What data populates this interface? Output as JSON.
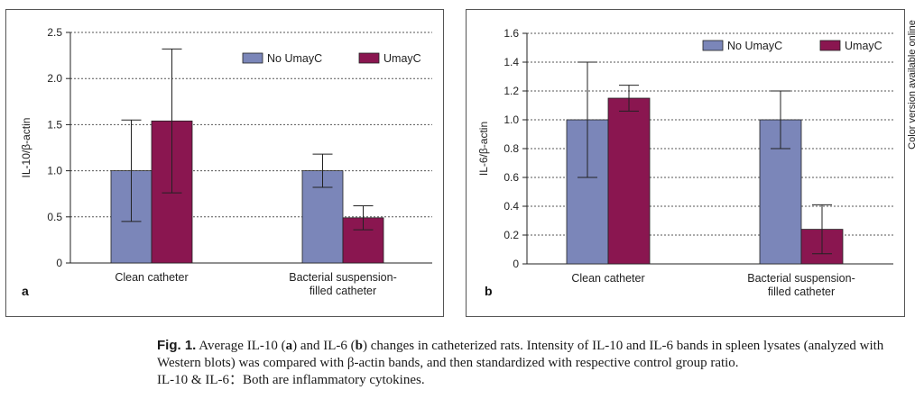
{
  "side_note": "Color version available online",
  "caption": {
    "fig_label": "Fig. 1.",
    "t1": " Average IL-10 (",
    "a": "a",
    "t2": ") and IL-6 (",
    "b": "b",
    "t3": ") changes in catheterized rats. Intensity of IL-10 and IL-6 bands in spleen lysates (analyzed with Western blots) was compared with β-actin bands, and then standardized with respective control group ratio.",
    "note": "IL-10 & IL-6：Both are inflammatory cytokines."
  },
  "colors": {
    "no_umayc": "#7b86b9",
    "umayc": "#8a1650"
  },
  "chart_data": [
    {
      "type": "bar",
      "panel_label": "a",
      "ylabel": "IL-10/β-actin",
      "ylim": [
        0,
        2.5
      ],
      "yticks": [
        "0",
        "0.5",
        "1.0",
        "1.5",
        "2.0",
        "2.5"
      ],
      "ytick_values": [
        0,
        0.5,
        1.0,
        1.5,
        2.0,
        2.5
      ],
      "categories": [
        [
          "Clean catheter"
        ],
        [
          "Bacterial suspension-",
          "filled catheter"
        ]
      ],
      "grid": true,
      "legend": "top-right",
      "series": [
        {
          "name": "No UmayC",
          "values": [
            1.0,
            1.0
          ],
          "error": [
            0.55,
            0.18
          ]
        },
        {
          "name": "UmayC",
          "values": [
            1.54,
            0.49
          ],
          "error": [
            0.78,
            0.13
          ]
        }
      ]
    },
    {
      "type": "bar",
      "panel_label": "b",
      "ylabel": "IL-6/β-actin",
      "ylim": [
        0,
        1.6
      ],
      "yticks": [
        "0",
        "0.2",
        "0.4",
        "0.6",
        "0.8",
        "1.0",
        "1.2",
        "1.4",
        "1.6"
      ],
      "ytick_values": [
        0,
        0.2,
        0.4,
        0.6,
        0.8,
        1.0,
        1.2,
        1.4,
        1.6
      ],
      "categories": [
        [
          "Clean catheter"
        ],
        [
          "Bacterial suspension-",
          "filled catheter"
        ]
      ],
      "grid": true,
      "legend": "top-right",
      "series": [
        {
          "name": "No UmayC",
          "values": [
            1.0,
            1.0
          ],
          "error": [
            0.4,
            0.2
          ]
        },
        {
          "name": "UmayC",
          "values": [
            1.15,
            0.24
          ],
          "error": [
            0.09,
            0.17
          ]
        }
      ]
    }
  ]
}
